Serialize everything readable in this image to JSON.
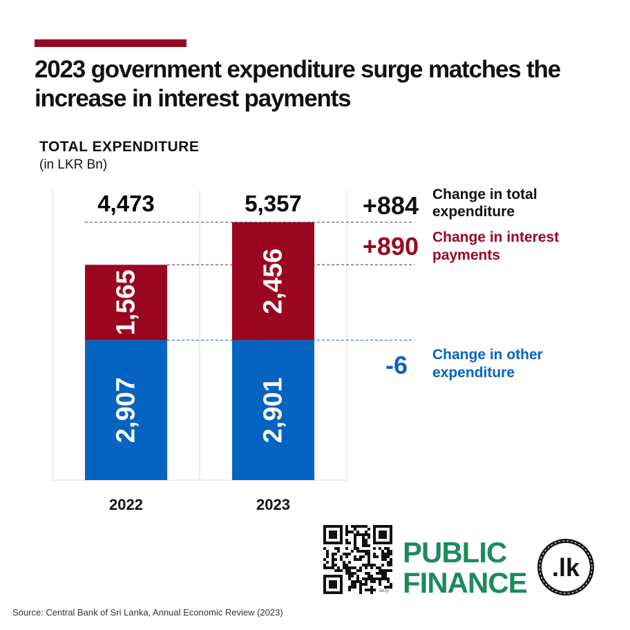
{
  "title": "2023 government expenditure surge matches the increase in interest payments",
  "chart_subtitle": "TOTAL EXPENDITURE",
  "chart_unit": "(in LKR Bn)",
  "colors": {
    "accent": "#9a0620",
    "interest": "#9a0620",
    "other": "#0563c1",
    "brand_green": "#1f8a5b"
  },
  "chart_data": {
    "type": "bar",
    "stacked": true,
    "categories": [
      "2022",
      "2023"
    ],
    "series": [
      {
        "key": "other",
        "values": [
          2907,
          2901
        ],
        "labels": [
          "2,907",
          "2,901"
        ],
        "color": "#0563c1"
      },
      {
        "key": "interest",
        "values": [
          1565,
          2456
        ],
        "labels": [
          "1,565",
          "2,456"
        ],
        "color": "#9a0620"
      }
    ],
    "totals": [
      4473,
      5357
    ],
    "total_labels": [
      "4,473",
      "5,357"
    ],
    "ylim": [
      0,
      5600
    ],
    "grid": false,
    "annotations": [
      {
        "value": "+884",
        "label_line1": "Change in total",
        "label_line2": "expenditure",
        "color": "#111111"
      },
      {
        "value": "+890",
        "label_line1": "Change in interest",
        "label_line2": "payments",
        "color": "#9a0620"
      },
      {
        "value": "-6",
        "label_line1": "Change in other",
        "label_line2": "expenditure",
        "color": "#0563c1"
      }
    ]
  },
  "brand": {
    "line1": "PUBLIC",
    "line2": "FINANCE",
    "badge": ".lk",
    "qr_caption": "bit.ly"
  },
  "source": "Source: Central Bank of Sri Lanka, Annual Economic Review (2023)"
}
